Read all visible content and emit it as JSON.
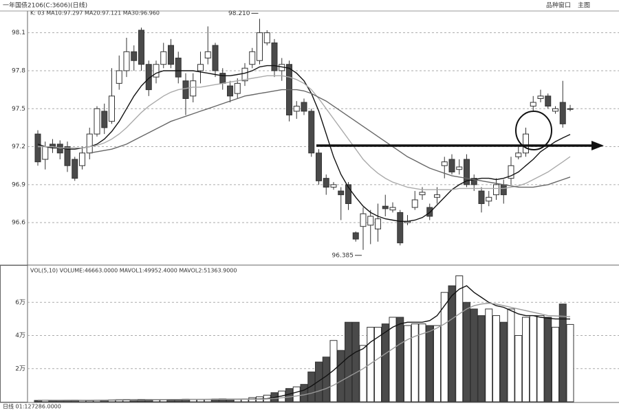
{
  "toolbar": [
    "品种窗口",
    "主图"
  ],
  "chart_data": [
    {
      "type": "candlestick",
      "title": "一年国债2106(C:3606)(日线)",
      "legend_text": "K: 03 MA10:97.297 MA20:97.121 MA30:96.960",
      "high_label": "98.210",
      "low_label": "96.385",
      "up_color": "#ffffff",
      "down_color": "#4a4a4a",
      "edge_color": "#333333",
      "open": [
        97.3,
        97.1,
        97.22,
        97.22,
        97.2,
        97.1,
        97.05,
        97.15,
        97.3,
        97.48,
        97.4,
        97.7,
        97.8,
        97.95,
        98.12,
        97.85,
        97.75,
        97.85,
        98.0,
        97.9,
        97.72,
        97.6,
        97.8,
        97.9,
        98.0,
        97.78,
        97.68,
        97.62,
        97.72,
        97.85,
        97.88,
        98.02,
        98.02,
        97.8,
        97.85,
        97.48,
        97.55,
        97.48,
        97.15,
        96.95,
        96.88,
        96.85,
        96.9,
        96.52,
        96.57,
        96.58,
        96.55,
        96.73,
        96.7,
        96.68,
        96.6,
        96.72,
        96.82,
        96.72,
        96.8,
        97.05,
        97.1,
        97.02,
        97.1,
        96.95,
        96.85,
        96.77,
        96.82,
        96.9,
        96.95,
        97.12,
        97.15,
        97.52,
        97.58,
        97.6,
        97.48,
        97.55,
        97.5
      ],
      "high": [
        97.33,
        97.24,
        97.26,
        97.25,
        97.24,
        97.12,
        97.2,
        97.35,
        97.52,
        97.54,
        97.82,
        97.92,
        98.06,
        98.0,
        98.14,
        97.88,
        97.88,
        98.02,
        98.05,
        97.95,
        97.78,
        97.78,
        97.95,
        98.15,
        98.02,
        97.82,
        97.72,
        97.74,
        97.86,
        97.98,
        98.21,
        98.12,
        98.05,
        97.9,
        97.88,
        97.56,
        97.58,
        97.5,
        97.18,
        96.98,
        96.92,
        96.88,
        96.92,
        96.53,
        96.72,
        96.7,
        96.75,
        96.82,
        96.76,
        96.7,
        96.66,
        96.85,
        96.88,
        96.75,
        96.88,
        97.12,
        97.14,
        97.1,
        97.14,
        96.98,
        96.88,
        96.85,
        96.95,
        96.94,
        97.12,
        97.2,
        97.35,
        97.6,
        97.65,
        97.62,
        97.52,
        97.72,
        97.53
      ],
      "low": [
        97.05,
        97.02,
        97.15,
        97.1,
        97.0,
        96.93,
        97.02,
        97.1,
        97.28,
        97.3,
        97.38,
        97.65,
        97.75,
        97.8,
        97.8,
        97.6,
        97.7,
        97.82,
        97.82,
        97.7,
        97.45,
        97.55,
        97.7,
        97.85,
        97.75,
        97.65,
        97.55,
        97.58,
        97.68,
        97.82,
        97.85,
        98.0,
        97.75,
        97.72,
        97.4,
        97.42,
        97.45,
        97.12,
        96.9,
        96.82,
        96.86,
        96.62,
        96.7,
        96.45,
        96.385,
        96.43,
        96.45,
        96.65,
        96.68,
        96.42,
        96.58,
        96.7,
        96.78,
        96.62,
        96.75,
        96.95,
        96.98,
        96.98,
        96.88,
        96.85,
        96.68,
        96.73,
        96.78,
        96.75,
        96.9,
        97.1,
        97.12,
        97.48,
        97.55,
        97.5,
        97.46,
        97.35,
        97.48
      ],
      "close": [
        97.08,
        97.2,
        97.2,
        97.15,
        97.05,
        96.95,
        97.15,
        97.3,
        97.5,
        97.35,
        97.6,
        97.8,
        97.95,
        97.88,
        97.85,
        97.65,
        97.85,
        97.95,
        97.85,
        97.75,
        97.58,
        97.72,
        97.85,
        97.95,
        97.8,
        97.7,
        97.6,
        97.7,
        97.82,
        97.95,
        98.1,
        98.1,
        97.8,
        97.85,
        97.45,
        97.52,
        97.48,
        97.15,
        96.93,
        96.88,
        96.9,
        96.82,
        96.75,
        96.47,
        96.67,
        96.65,
        96.63,
        96.71,
        96.72,
        96.44,
        96.61,
        96.78,
        96.84,
        96.65,
        96.82,
        97.08,
        97.0,
        97.04,
        96.9,
        96.9,
        96.75,
        96.8,
        96.9,
        96.82,
        97.05,
        97.15,
        97.3,
        97.55,
        97.6,
        97.52,
        97.5,
        97.38,
        97.5
      ],
      "series": [
        {
          "name": "MA10",
          "color": "#111111",
          "values": [
            97.22,
            97.2,
            97.19,
            97.19,
            97.18,
            97.18,
            97.19,
            97.2,
            97.22,
            97.26,
            97.32,
            97.4,
            97.5,
            97.6,
            97.68,
            97.74,
            97.78,
            97.8,
            97.8,
            97.8,
            97.8,
            97.8,
            97.79,
            97.78,
            97.77,
            97.76,
            97.76,
            97.77,
            97.78,
            97.8,
            97.83,
            97.84,
            97.84,
            97.83,
            97.82,
            97.78,
            97.72,
            97.62,
            97.48,
            97.3,
            97.12,
            96.98,
            96.88,
            96.8,
            96.73,
            96.68,
            96.65,
            96.63,
            96.62,
            96.61,
            96.61,
            96.62,
            96.64,
            96.68,
            96.74,
            96.8,
            96.86,
            96.9,
            96.93,
            96.94,
            96.95,
            96.95,
            96.94,
            96.95,
            96.97,
            97.0,
            97.05,
            97.1,
            97.16,
            97.2,
            97.24,
            97.27,
            97.297
          ]
        },
        {
          "name": "MA20",
          "color": "#aaaaaa",
          "values": [
            97.2,
            97.2,
            97.2,
            97.19,
            97.19,
            97.19,
            97.19,
            97.2,
            97.21,
            97.23,
            97.26,
            97.3,
            97.35,
            97.41,
            97.47,
            97.52,
            97.56,
            97.6,
            97.63,
            97.65,
            97.66,
            97.67,
            97.67,
            97.68,
            97.69,
            97.7,
            97.71,
            97.72,
            97.73,
            97.74,
            97.75,
            97.76,
            97.76,
            97.76,
            97.75,
            97.73,
            97.7,
            97.65,
            97.58,
            97.5,
            97.42,
            97.34,
            97.26,
            97.18,
            97.1,
            97.04,
            96.99,
            96.95,
            96.92,
            96.9,
            96.88,
            96.87,
            96.86,
            96.86,
            96.86,
            96.86,
            96.86,
            96.87,
            96.87,
            96.87,
            96.87,
            96.87,
            96.87,
            96.87,
            96.88,
            96.89,
            96.91,
            96.94,
            96.97,
            97.0,
            97.04,
            97.08,
            97.121
          ]
        },
        {
          "name": "MA30",
          "color": "#666666",
          "values": [
            null,
            null,
            null,
            null,
            null,
            null,
            null,
            97.15,
            97.16,
            97.17,
            97.18,
            97.2,
            97.22,
            97.25,
            97.28,
            97.31,
            97.34,
            97.37,
            97.4,
            97.42,
            97.44,
            97.46,
            97.48,
            97.5,
            97.52,
            97.54,
            97.56,
            97.58,
            97.6,
            97.61,
            97.62,
            97.63,
            97.64,
            97.65,
            97.65,
            97.65,
            97.64,
            97.62,
            97.59,
            97.56,
            97.52,
            97.48,
            97.44,
            97.4,
            97.36,
            97.32,
            97.28,
            97.24,
            97.2,
            97.16,
            97.12,
            97.09,
            97.06,
            97.03,
            97.01,
            96.99,
            96.97,
            96.96,
            96.95,
            96.94,
            96.93,
            96.92,
            96.91,
            96.9,
            96.89,
            96.88,
            96.88,
            96.88,
            96.89,
            96.9,
            96.92,
            96.94,
            96.96
          ]
        }
      ],
      "ylim": [
        96.27,
        98.25
      ],
      "yticks": [
        96.6,
        96.9,
        97.2,
        97.5,
        97.8,
        98.1
      ],
      "grid": true
    },
    {
      "type": "bar",
      "title": "VOL(5,10) VOLUME:46663.0000 MAVOL1:49952.4000 MAVOL2:51363.9000",
      "footer": "日线 01:127286.0000",
      "values": [
        800,
        900,
        700,
        800,
        900,
        1000,
        800,
        700,
        900,
        1000,
        1100,
        1200,
        1300,
        1200,
        1400,
        1300,
        1200,
        1300,
        1400,
        1300,
        1500,
        1400,
        1300,
        1400,
        1600,
        1700,
        1500,
        1400,
        1600,
        2500,
        3000,
        4000,
        5500,
        6500,
        8000,
        9000,
        10500,
        18000,
        24000,
        27000,
        37000,
        31000,
        48000,
        48000,
        34000,
        45000,
        45000,
        47000,
        51000,
        51000,
        46000,
        47000,
        47000,
        46000,
        46000,
        66000,
        70000,
        76000,
        60000,
        56000,
        52000,
        56000,
        52000,
        48000,
        56000,
        40000,
        51000,
        52000,
        52000,
        51000,
        45000,
        59000,
        46663
      ],
      "series": [
        {
          "name": "MAVOL1",
          "color": "#111111",
          "values": [
            900,
            900,
            850,
            850,
            900,
            900,
            850,
            850,
            900,
            950,
            1000,
            1100,
            1150,
            1200,
            1250,
            1300,
            1300,
            1300,
            1350,
            1350,
            1400,
            1400,
            1400,
            1420,
            1450,
            1500,
            1550,
            1550,
            1560,
            1580,
            1650,
            1900,
            2600,
            3500,
            4600,
            5800,
            7000,
            9500,
            12500,
            15500,
            19000,
            23000,
            27000,
            30000,
            32000,
            36000,
            39000,
            42000,
            45000,
            47000,
            48000,
            48000,
            48000,
            49000,
            52000,
            58000,
            64000,
            68000,
            70000,
            66000,
            63000,
            60000,
            58000,
            57000,
            55000,
            53000,
            52000,
            52000,
            51000,
            50500,
            50000,
            50000,
            49952.4
          ]
        },
        {
          "name": "MAVOL2",
          "color": "#999999",
          "values": [
            900,
            900,
            880,
            870,
            870,
            880,
            880,
            870,
            870,
            880,
            900,
            950,
            1000,
            1050,
            1100,
            1150,
            1200,
            1250,
            1280,
            1300,
            1330,
            1350,
            1370,
            1390,
            1400,
            1420,
            1440,
            1460,
            1480,
            1500,
            1550,
            1700,
            2000,
            2400,
            2900,
            3500,
            4200,
            5200,
            6500,
            8000,
            10000,
            12500,
            15000,
            17500,
            20000,
            23000,
            26000,
            29000,
            32000,
            35000,
            37500,
            39500,
            41000,
            42500,
            44500,
            47000,
            50000,
            53000,
            56000,
            58000,
            59000,
            59500,
            59000,
            58000,
            57000,
            56000,
            55000,
            54000,
            53000,
            52000,
            51800,
            51600,
            51363.9
          ]
        }
      ],
      "ylim": [
        0,
        80000
      ],
      "yticks": [
        {
          "value": 20000,
          "label": "2万"
        },
        {
          "value": 40000,
          "label": "4万"
        },
        {
          "value": 60000,
          "label": "6万"
        }
      ],
      "grid": true
    }
  ]
}
